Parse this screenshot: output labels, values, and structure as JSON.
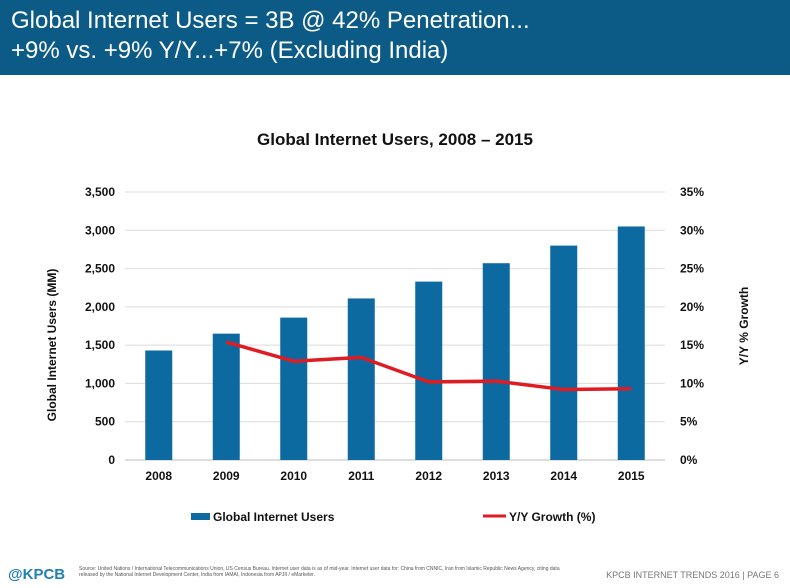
{
  "header": {
    "line1": "Global Internet Users = 3B @ 42% Penetration...",
    "line2": "+9% vs. +9% Y/Y...+7% (Excluding India)"
  },
  "chart_data": {
    "type": "bar",
    "title": "Global Internet Users, 2008 – 2015",
    "categories": [
      "2008",
      "2009",
      "2010",
      "2011",
      "2012",
      "2013",
      "2014",
      "2015"
    ],
    "series": [
      {
        "name": "Global Internet Users",
        "type": "bar",
        "axis": "left",
        "color": "#0c6aa0",
        "values": [
          1430,
          1650,
          1860,
          2110,
          2330,
          2570,
          2800,
          3050
        ]
      },
      {
        "name": "Y/Y Growth (%)",
        "type": "line",
        "axis": "right",
        "color": "#e01b22",
        "values": [
          null,
          15.4,
          12.9,
          13.4,
          10.2,
          10.3,
          9.2,
          9.3
        ]
      }
    ],
    "ylabel": "Global Internet Users (MM)",
    "y2label": "Y/Y % Growth",
    "ylim": [
      0,
      3500
    ],
    "y2lim": [
      0,
      35
    ],
    "yticks": [
      "0",
      "500",
      "1,000",
      "1,500",
      "2,000",
      "2,500",
      "3,000",
      "3,500"
    ],
    "y2ticks": [
      "0%",
      "5%",
      "10%",
      "15%",
      "20%",
      "25%",
      "30%",
      "35%"
    ],
    "grid": true,
    "legend": "bottom"
  },
  "footer": {
    "logo": "@KPCB",
    "source": "Source: United Nations / International Telecommunications Union, US Census Bureau. Internet user data is as of mid-year. Internet user data for: China from CNNIC, Iran from Islamic Republic News Agency, citing data released by the National Internet Development Center, India from IAMAI, Indonesia from APJII / eMarketer.",
    "page": "KPCB INTERNET TRENDS 2016  |  PAGE 6"
  }
}
